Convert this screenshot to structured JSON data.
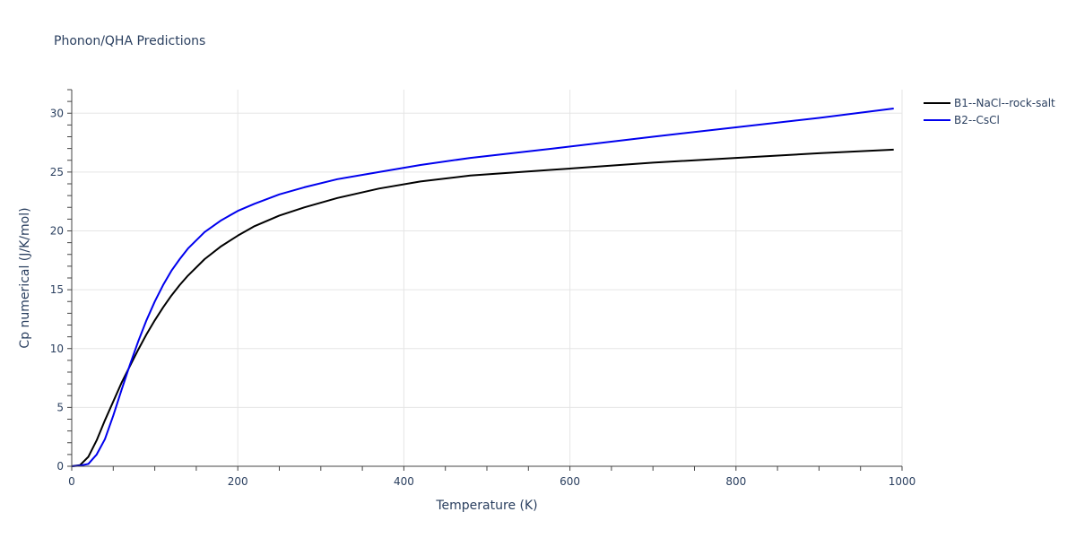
{
  "chart_data": {
    "type": "line",
    "title": "Phonon/QHA Predictions",
    "xlabel": "Temperature (K)",
    "ylabel": "Cp numerical (J/K/mol)",
    "xlim": [
      0,
      1000
    ],
    "ylim": [
      0,
      32
    ],
    "x_ticks": [
      0,
      200,
      400,
      600,
      800,
      1000
    ],
    "y_ticks": [
      0,
      5,
      10,
      15,
      20,
      25,
      30
    ],
    "x_tick_labels": [
      "0",
      "200",
      "400",
      "600",
      "800",
      "1000"
    ],
    "y_tick_labels": [
      "0",
      "5",
      "10",
      "15",
      "20",
      "25",
      "30"
    ],
    "grid": true,
    "legend_position": "top-right",
    "series": [
      {
        "name": "B1--NaCl--rock-salt",
        "color": "#000000",
        "points": [
          [
            0,
            0
          ],
          [
            10,
            0.1
          ],
          [
            20,
            0.8
          ],
          [
            30,
            2.2
          ],
          [
            40,
            3.9
          ],
          [
            50,
            5.5
          ],
          [
            60,
            7.1
          ],
          [
            70,
            8.5
          ],
          [
            80,
            9.9
          ],
          [
            90,
            11.2
          ],
          [
            100,
            12.4
          ],
          [
            110,
            13.5
          ],
          [
            120,
            14.5
          ],
          [
            130,
            15.4
          ],
          [
            140,
            16.2
          ],
          [
            160,
            17.6
          ],
          [
            180,
            18.7
          ],
          [
            200,
            19.6
          ],
          [
            220,
            20.4
          ],
          [
            250,
            21.3
          ],
          [
            280,
            22.0
          ],
          [
            320,
            22.8
          ],
          [
            370,
            23.6
          ],
          [
            420,
            24.2
          ],
          [
            480,
            24.7
          ],
          [
            580,
            25.2
          ],
          [
            700,
            25.8
          ],
          [
            800,
            26.2
          ],
          [
            900,
            26.6
          ],
          [
            990,
            26.9
          ]
        ]
      },
      {
        "name": "B2--CsCl",
        "color": "#0000ee",
        "points": [
          [
            0,
            0
          ],
          [
            10,
            0.05
          ],
          [
            20,
            0.2
          ],
          [
            30,
            1.0
          ],
          [
            40,
            2.3
          ],
          [
            50,
            4.3
          ],
          [
            60,
            6.5
          ],
          [
            70,
            8.6
          ],
          [
            80,
            10.6
          ],
          [
            90,
            12.4
          ],
          [
            100,
            14.0
          ],
          [
            110,
            15.4
          ],
          [
            120,
            16.6
          ],
          [
            130,
            17.6
          ],
          [
            140,
            18.5
          ],
          [
            160,
            19.9
          ],
          [
            180,
            20.9
          ],
          [
            200,
            21.7
          ],
          [
            220,
            22.3
          ],
          [
            250,
            23.1
          ],
          [
            280,
            23.7
          ],
          [
            320,
            24.4
          ],
          [
            370,
            25.0
          ],
          [
            420,
            25.6
          ],
          [
            480,
            26.2
          ],
          [
            580,
            27.0
          ],
          [
            700,
            28.0
          ],
          [
            800,
            28.8
          ],
          [
            900,
            29.6
          ],
          [
            990,
            30.4
          ]
        ]
      }
    ]
  }
}
